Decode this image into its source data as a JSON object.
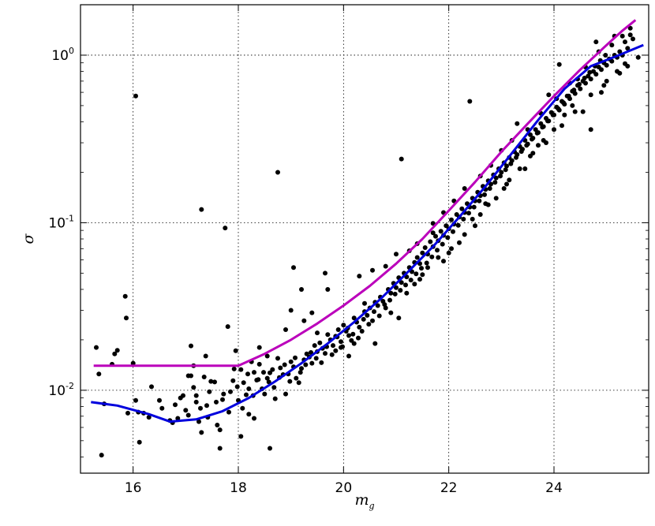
{
  "chart_data": {
    "type": "scatter",
    "title": "",
    "xlabel": "m",
    "xlabel_sub": "g",
    "ylabel": "σ",
    "xlim": [
      15.0,
      25.8
    ],
    "ylim": [
      0.0032,
      2.0
    ],
    "yscale": "log",
    "grid": true,
    "x_ticks": [
      16,
      18,
      20,
      22,
      24
    ],
    "x_tick_labels": [
      "16",
      "18",
      "20",
      "22",
      "24"
    ],
    "y_ticks": [
      0.01,
      0.1,
      1.0
    ],
    "y_tick_labels": [
      {
        "base": "10",
        "exp": "-2"
      },
      {
        "base": "10",
        "exp": "-1"
      },
      {
        "base": "10",
        "exp": "0"
      }
    ],
    "series": [
      {
        "kind": "line",
        "color": "#bb00bb",
        "x": [
          15.25,
          16.0,
          17.0,
          18.0,
          18.5,
          19.0,
          19.5,
          20.0,
          20.5,
          21.0,
          21.5,
          22.0,
          22.5,
          23.0,
          23.5,
          24.0,
          24.5,
          25.0,
          25.3,
          25.55
        ],
        "y": [
          0.014,
          0.014,
          0.014,
          0.014,
          0.0165,
          0.02,
          0.025,
          0.032,
          0.042,
          0.057,
          0.08,
          0.118,
          0.175,
          0.265,
          0.39,
          0.57,
          0.82,
          1.15,
          1.4,
          1.62
        ]
      },
      {
        "kind": "line",
        "color": "#0000dd",
        "x": [
          15.2,
          15.7,
          16.3,
          16.7,
          17.2,
          17.7,
          18.2,
          18.7,
          19.2,
          19.7,
          20.2,
          20.7,
          21.2,
          21.7,
          22.2,
          22.7,
          23.2,
          23.7,
          24.2,
          24.7,
          25.2,
          25.7
        ],
        "y": [
          0.0085,
          0.0081,
          0.0072,
          0.0065,
          0.0067,
          0.0075,
          0.009,
          0.0113,
          0.0145,
          0.019,
          0.0255,
          0.035,
          0.05,
          0.072,
          0.108,
          0.165,
          0.26,
          0.41,
          0.63,
          0.86,
          0.99,
          1.15
        ]
      }
    ],
    "points_color": "#000000",
    "points": [
      [
        15.3,
        0.018
      ],
      [
        15.35,
        0.0125
      ],
      [
        15.4,
        0.0041
      ],
      [
        15.45,
        0.0083
      ],
      [
        15.6,
        0.0143
      ],
      [
        15.65,
        0.0165
      ],
      [
        15.7,
        0.0173
      ],
      [
        15.85,
        0.0364
      ],
      [
        15.87,
        0.027
      ],
      [
        15.9,
        0.0073
      ],
      [
        16.0,
        0.0145
      ],
      [
        16.05,
        0.0087
      ],
      [
        16.1,
        0.0074
      ],
      [
        16.12,
        0.0049
      ],
      [
        16.05,
        0.57
      ],
      [
        16.2,
        0.0073
      ],
      [
        16.3,
        0.0069
      ],
      [
        16.5,
        0.0087
      ],
      [
        16.7,
        0.0066
      ],
      [
        16.8,
        0.0082
      ],
      [
        16.85,
        0.0068
      ],
      [
        16.9,
        0.009
      ],
      [
        17.0,
        0.0076
      ],
      [
        17.05,
        0.0071
      ],
      [
        17.1,
        0.0184
      ],
      [
        17.1,
        0.0122
      ],
      [
        17.15,
        0.0104
      ],
      [
        17.2,
        0.0093
      ],
      [
        17.25,
        0.0065
      ],
      [
        17.3,
        0.0056
      ],
      [
        17.35,
        0.012
      ],
      [
        17.38,
        0.016
      ],
      [
        17.4,
        0.0081
      ],
      [
        17.45,
        0.0098
      ],
      [
        17.3,
        0.12
      ],
      [
        17.55,
        0.0112
      ],
      [
        17.6,
        0.0062
      ],
      [
        17.65,
        0.0058
      ],
      [
        17.65,
        0.0045
      ],
      [
        17.7,
        0.0088
      ],
      [
        17.75,
        0.093
      ],
      [
        17.8,
        0.024
      ],
      [
        17.85,
        0.0098
      ],
      [
        17.9,
        0.0114
      ],
      [
        17.95,
        0.0172
      ],
      [
        18.0,
        0.0087
      ],
      [
        18.05,
        0.0133
      ],
      [
        18.1,
        0.0111
      ],
      [
        18.15,
        0.0094
      ],
      [
        18.2,
        0.0102
      ],
      [
        18.25,
        0.0148
      ],
      [
        18.3,
        0.0128
      ],
      [
        18.35,
        0.0115
      ],
      [
        18.4,
        0.0143
      ],
      [
        18.45,
        0.0102
      ],
      [
        18.5,
        0.0095
      ],
      [
        18.55,
        0.0118
      ],
      [
        18.6,
        0.0127
      ],
      [
        18.65,
        0.0133
      ],
      [
        18.7,
        0.0089
      ],
      [
        18.75,
        0.0155
      ],
      [
        18.8,
        0.0136
      ],
      [
        18.85,
        0.0124
      ],
      [
        18.9,
        0.0095
      ],
      [
        18.95,
        0.0125
      ],
      [
        19.0,
        0.0148
      ],
      [
        19.05,
        0.0138
      ],
      [
        19.1,
        0.0118
      ],
      [
        19.15,
        0.0111
      ],
      [
        19.2,
        0.0135
      ],
      [
        19.25,
        0.0152
      ],
      [
        19.3,
        0.0165
      ],
      [
        19.35,
        0.0158
      ],
      [
        19.4,
        0.0145
      ],
      [
        19.45,
        0.0185
      ],
      [
        19.5,
        0.017
      ],
      [
        19.55,
        0.0192
      ],
      [
        19.6,
        0.0178
      ],
      [
        19.65,
        0.0166
      ],
      [
        19.7,
        0.0215
      ],
      [
        19.75,
        0.02
      ],
      [
        19.8,
        0.0185
      ],
      [
        19.85,
        0.0172
      ],
      [
        19.9,
        0.023
      ],
      [
        19.95,
        0.0195
      ],
      [
        20.0,
        0.0245
      ],
      [
        20.05,
        0.0225
      ],
      [
        20.1,
        0.0212
      ],
      [
        20.15,
        0.0198
      ],
      [
        20.2,
        0.027
      ],
      [
        20.25,
        0.0255
      ],
      [
        20.3,
        0.0238
      ],
      [
        20.35,
        0.0225
      ],
      [
        20.4,
        0.0295
      ],
      [
        20.45,
        0.028
      ],
      [
        20.5,
        0.031
      ],
      [
        20.55,
        0.026
      ],
      [
        20.6,
        0.0335
      ],
      [
        20.65,
        0.032
      ],
      [
        20.7,
        0.036
      ],
      [
        20.75,
        0.034
      ],
      [
        20.8,
        0.031
      ],
      [
        20.85,
        0.04
      ],
      [
        20.9,
        0.038
      ],
      [
        20.95,
        0.0435
      ],
      [
        21.0,
        0.041
      ],
      [
        21.05,
        0.047
      ],
      [
        21.1,
        0.044
      ],
      [
        21.15,
        0.05
      ],
      [
        21.2,
        0.0475
      ],
      [
        21.25,
        0.054
      ],
      [
        21.3,
        0.051
      ],
      [
        21.35,
        0.058
      ],
      [
        21.4,
        0.062
      ],
      [
        21.45,
        0.057
      ],
      [
        21.5,
        0.066
      ],
      [
        21.55,
        0.071
      ],
      [
        21.6,
        0.065
      ],
      [
        21.65,
        0.077
      ],
      [
        21.7,
        0.072
      ],
      [
        21.75,
        0.083
      ],
      [
        21.8,
        0.078
      ],
      [
        21.85,
        0.089
      ],
      [
        21.9,
        0.084
      ],
      [
        21.95,
        0.096
      ],
      [
        22.0,
        0.092
      ],
      [
        22.05,
        0.104
      ],
      [
        22.1,
        0.098
      ],
      [
        22.15,
        0.112
      ],
      [
        22.2,
        0.108
      ],
      [
        22.25,
        0.121
      ],
      [
        22.3,
        0.115
      ],
      [
        22.35,
        0.13
      ],
      [
        22.4,
        0.124
      ],
      [
        22.45,
        0.14
      ],
      [
        22.5,
        0.135
      ],
      [
        22.55,
        0.152
      ],
      [
        22.6,
        0.145
      ],
      [
        22.65,
        0.165
      ],
      [
        22.7,
        0.158
      ],
      [
        22.75,
        0.178
      ],
      [
        22.8,
        0.17
      ],
      [
        22.85,
        0.193
      ],
      [
        22.9,
        0.185
      ],
      [
        22.95,
        0.21
      ],
      [
        23.0,
        0.2
      ],
      [
        23.05,
        0.228
      ],
      [
        23.1,
        0.218
      ],
      [
        23.15,
        0.245
      ],
      [
        23.2,
        0.235
      ],
      [
        23.25,
        0.265
      ],
      [
        23.3,
        0.255
      ],
      [
        23.35,
        0.285
      ],
      [
        23.4,
        0.275
      ],
      [
        23.45,
        0.31
      ],
      [
        23.5,
        0.295
      ],
      [
        23.55,
        0.335
      ],
      [
        23.6,
        0.32
      ],
      [
        23.65,
        0.36
      ],
      [
        23.7,
        0.345
      ],
      [
        23.75,
        0.39
      ],
      [
        23.8,
        0.375
      ],
      [
        23.85,
        0.42
      ],
      [
        23.9,
        0.405
      ],
      [
        23.95,
        0.455
      ],
      [
        24.0,
        0.44
      ],
      [
        24.05,
        0.49
      ],
      [
        24.1,
        0.47
      ],
      [
        24.15,
        0.53
      ],
      [
        24.2,
        0.51
      ],
      [
        24.25,
        0.57
      ],
      [
        24.3,
        0.55
      ],
      [
        24.35,
        0.61
      ],
      [
        24.4,
        0.59
      ],
      [
        24.45,
        0.66
      ],
      [
        24.5,
        0.63
      ],
      [
        24.55,
        0.7
      ],
      [
        24.6,
        0.68
      ],
      [
        24.65,
        0.75
      ],
      [
        24.7,
        0.72
      ],
      [
        24.75,
        0.8
      ],
      [
        24.8,
        0.77
      ],
      [
        24.85,
        0.85
      ],
      [
        24.9,
        0.82
      ],
      [
        24.95,
        0.9
      ],
      [
        25.0,
        0.87
      ],
      [
        25.05,
        0.95
      ],
      [
        25.1,
        0.92
      ],
      [
        25.15,
        1.0
      ],
      [
        25.2,
        0.97
      ],
      [
        25.25,
        1.05
      ],
      [
        25.3,
        1.0
      ],
      [
        25.35,
        1.2
      ],
      [
        25.4,
        1.1
      ],
      [
        25.45,
        1.32
      ],
      [
        25.5,
        1.25
      ],
      [
        25.6,
        0.97
      ],
      [
        18.05,
        0.0053
      ],
      [
        18.2,
        0.0072
      ],
      [
        18.3,
        0.0068
      ],
      [
        18.4,
        0.018
      ],
      [
        18.55,
        0.016
      ],
      [
        18.6,
        0.0045
      ],
      [
        18.75,
        0.2
      ],
      [
        18.9,
        0.023
      ],
      [
        19.0,
        0.03
      ],
      [
        19.05,
        0.054
      ],
      [
        19.2,
        0.04
      ],
      [
        19.25,
        0.026
      ],
      [
        19.4,
        0.029
      ],
      [
        19.5,
        0.022
      ],
      [
        19.65,
        0.05
      ],
      [
        19.7,
        0.04
      ],
      [
        19.85,
        0.021
      ],
      [
        19.95,
        0.018
      ],
      [
        20.1,
        0.016
      ],
      [
        20.2,
        0.019
      ],
      [
        20.3,
        0.048
      ],
      [
        20.4,
        0.033
      ],
      [
        20.55,
        0.052
      ],
      [
        20.6,
        0.019
      ],
      [
        20.8,
        0.055
      ],
      [
        20.9,
        0.029
      ],
      [
        21.05,
        0.027
      ],
      [
        21.1,
        0.24
      ],
      [
        21.25,
        0.068
      ],
      [
        21.35,
        0.043
      ],
      [
        21.45,
        0.046
      ],
      [
        21.6,
        0.054
      ],
      [
        21.7,
        0.099
      ],
      [
        21.8,
        0.062
      ],
      [
        21.9,
        0.059
      ],
      [
        22.05,
        0.07
      ],
      [
        22.2,
        0.076
      ],
      [
        22.3,
        0.085
      ],
      [
        22.4,
        0.53
      ],
      [
        22.5,
        0.096
      ],
      [
        22.6,
        0.112
      ],
      [
        22.75,
        0.128
      ],
      [
        22.9,
        0.14
      ],
      [
        23.05,
        0.16
      ],
      [
        23.15,
        0.18
      ],
      [
        23.3,
        0.39
      ],
      [
        23.45,
        0.21
      ],
      [
        23.55,
        0.25
      ],
      [
        23.7,
        0.29
      ],
      [
        23.8,
        0.31
      ],
      [
        23.9,
        0.58
      ],
      [
        24.0,
        0.36
      ],
      [
        24.1,
        0.88
      ],
      [
        24.2,
        0.44
      ],
      [
        24.35,
        0.5
      ],
      [
        24.45,
        0.72
      ],
      [
        24.55,
        0.46
      ],
      [
        24.7,
        0.36
      ],
      [
        24.8,
        1.2
      ],
      [
        24.9,
        0.6
      ],
      [
        25.0,
        0.7
      ],
      [
        25.15,
        1.3
      ],
      [
        25.25,
        0.78
      ],
      [
        25.35,
        0.89
      ],
      [
        25.45,
        1.45
      ],
      [
        16.35,
        0.0105
      ],
      [
        16.55,
        0.0078
      ],
      [
        16.75,
        0.0064
      ],
      [
        16.95,
        0.0093
      ],
      [
        17.05,
        0.0122
      ],
      [
        17.15,
        0.014
      ],
      [
        17.2,
        0.0085
      ],
      [
        17.28,
        0.0078
      ],
      [
        17.42,
        0.0069
      ],
      [
        17.48,
        0.0113
      ],
      [
        17.58,
        0.0085
      ],
      [
        17.72,
        0.0095
      ],
      [
        17.82,
        0.0074
      ],
      [
        17.92,
        0.0134
      ],
      [
        17.98,
        0.0105
      ],
      [
        18.08,
        0.0078
      ],
      [
        18.18,
        0.0125
      ],
      [
        18.28,
        0.0093
      ],
      [
        18.38,
        0.0116
      ],
      [
        18.48,
        0.0128
      ],
      [
        18.58,
        0.0112
      ],
      [
        18.68,
        0.0104
      ],
      [
        18.78,
        0.0119
      ],
      [
        18.88,
        0.0142
      ],
      [
        18.98,
        0.0113
      ],
      [
        19.08,
        0.0156
      ],
      [
        19.18,
        0.0128
      ],
      [
        19.28,
        0.0142
      ],
      [
        19.38,
        0.0168
      ],
      [
        19.48,
        0.0155
      ],
      [
        19.58,
        0.0146
      ],
      [
        19.68,
        0.0182
      ],
      [
        19.78,
        0.0163
      ],
      [
        19.88,
        0.0208
      ],
      [
        19.98,
        0.0182
      ],
      [
        20.08,
        0.0235
      ],
      [
        20.18,
        0.0216
      ],
      [
        20.28,
        0.0205
      ],
      [
        20.38,
        0.0265
      ],
      [
        20.48,
        0.0248
      ],
      [
        20.58,
        0.0295
      ],
      [
        20.68,
        0.0278
      ],
      [
        20.78,
        0.0325
      ],
      [
        20.88,
        0.0345
      ],
      [
        20.98,
        0.0375
      ],
      [
        21.08,
        0.0395
      ],
      [
        21.18,
        0.0425
      ],
      [
        21.28,
        0.0455
      ],
      [
        21.38,
        0.0495
      ],
      [
        21.48,
        0.0535
      ],
      [
        21.58,
        0.0575
      ],
      [
        21.68,
        0.0625
      ],
      [
        21.78,
        0.0685
      ],
      [
        21.88,
        0.0745
      ],
      [
        21.98,
        0.0815
      ],
      [
        22.08,
        0.0885
      ],
      [
        22.18,
        0.0965
      ],
      [
        22.28,
        0.105
      ],
      [
        22.38,
        0.114
      ],
      [
        22.48,
        0.124
      ],
      [
        22.58,
        0.135
      ],
      [
        22.68,
        0.147
      ],
      [
        22.78,
        0.16
      ],
      [
        22.88,
        0.174
      ],
      [
        22.98,
        0.19
      ],
      [
        23.08,
        0.207
      ],
      [
        23.18,
        0.225
      ],
      [
        23.28,
        0.245
      ],
      [
        23.38,
        0.266
      ],
      [
        23.48,
        0.29
      ],
      [
        23.58,
        0.315
      ],
      [
        23.68,
        0.343
      ],
      [
        23.78,
        0.372
      ],
      [
        23.88,
        0.405
      ],
      [
        23.98,
        0.44
      ],
      [
        24.08,
        0.48
      ],
      [
        24.18,
        0.52
      ],
      [
        24.28,
        0.57
      ],
      [
        24.38,
        0.62
      ],
      [
        24.48,
        0.67
      ],
      [
        24.58,
        0.73
      ],
      [
        24.68,
        0.79
      ],
      [
        24.78,
        0.86
      ],
      [
        24.88,
        0.93
      ],
      [
        24.98,
        1.0
      ],
      [
        21.0,
        0.065
      ],
      [
        21.2,
        0.038
      ],
      [
        21.4,
        0.075
      ],
      [
        21.5,
        0.049
      ],
      [
        21.7,
        0.087
      ],
      [
        21.9,
        0.115
      ],
      [
        22.0,
        0.066
      ],
      [
        22.1,
        0.135
      ],
      [
        22.3,
        0.16
      ],
      [
        22.45,
        0.105
      ],
      [
        22.6,
        0.19
      ],
      [
        22.7,
        0.13
      ],
      [
        22.8,
        0.22
      ],
      [
        23.0,
        0.27
      ],
      [
        23.1,
        0.17
      ],
      [
        23.2,
        0.31
      ],
      [
        23.35,
        0.21
      ],
      [
        23.5,
        0.36
      ],
      [
        23.6,
        0.26
      ],
      [
        23.75,
        0.45
      ],
      [
        23.85,
        0.3
      ],
      [
        24.05,
        0.55
      ],
      [
        24.15,
        0.38
      ],
      [
        24.3,
        0.68
      ],
      [
        24.4,
        0.46
      ],
      [
        24.6,
        0.85
      ],
      [
        24.7,
        0.58
      ],
      [
        24.85,
        1.05
      ],
      [
        24.95,
        0.66
      ],
      [
        25.1,
        1.15
      ],
      [
        25.2,
        0.8
      ],
      [
        25.3,
        1.3
      ],
      [
        25.4,
        0.86
      ]
    ]
  }
}
